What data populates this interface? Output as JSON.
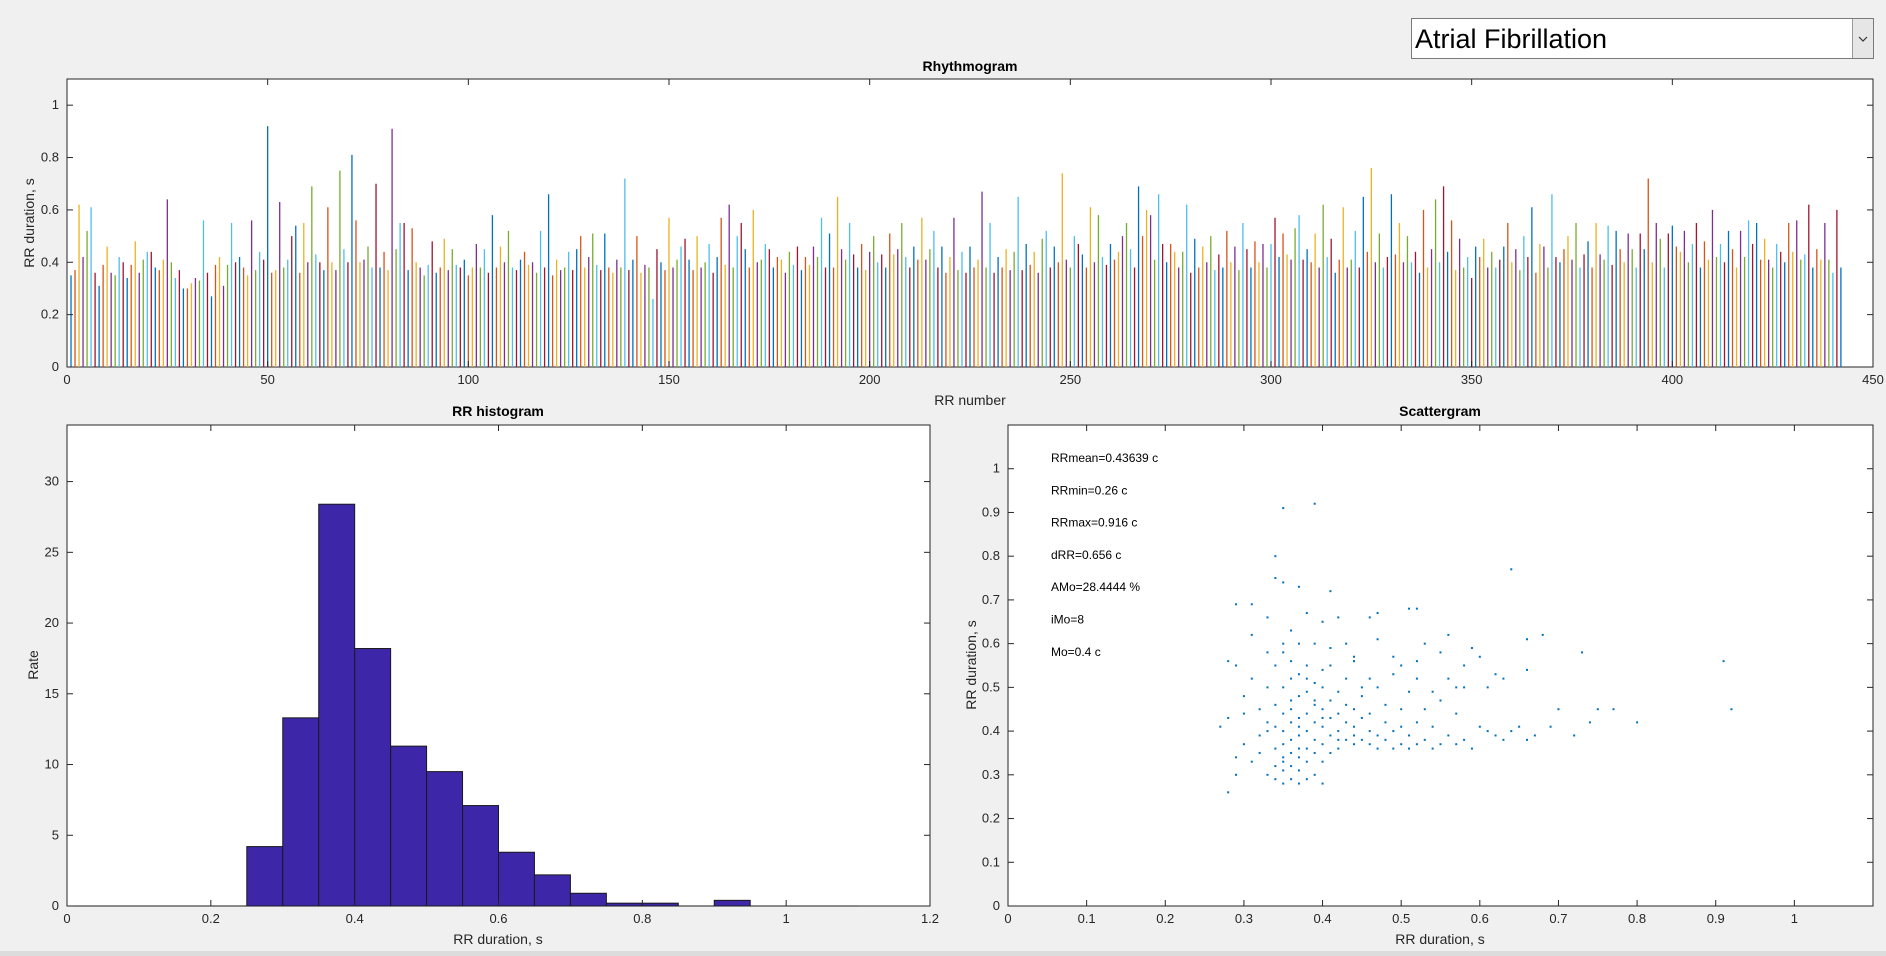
{
  "dropdown": {
    "value": "Atrial Fibrillation",
    "icon": "chevron-down-icon"
  },
  "colors": {
    "bg": "#f0f0f0",
    "hist_fill": "#3d26a8",
    "scatter": "#0072bd",
    "series_palette": [
      "#0072bd",
      "#d95319",
      "#edb120",
      "#7e2f8e",
      "#77ac30",
      "#4dbeee",
      "#a2142f"
    ]
  },
  "chart_data": [
    {
      "id": "rhythmogram",
      "type": "bar",
      "title": "Rhythmogram",
      "xlabel": "RR number",
      "ylabel": "RR duration, s",
      "xlim": [
        0,
        450
      ],
      "ylim": [
        0,
        1.1
      ],
      "xticks": [
        0,
        50,
        100,
        150,
        200,
        250,
        300,
        350,
        400,
        450
      ],
      "yticks": [
        0,
        0.2,
        0.4,
        0.6,
        0.8,
        1
      ],
      "x_start": 1,
      "values": [
        0.35,
        0.37,
        0.62,
        0.42,
        0.52,
        0.61,
        0.36,
        0.31,
        0.39,
        0.46,
        0.36,
        0.35,
        0.42,
        0.4,
        0.34,
        0.39,
        0.48,
        0.36,
        0.41,
        0.44,
        0.44,
        0.38,
        0.37,
        0.41,
        0.64,
        0.4,
        0.34,
        0.37,
        0.3,
        0.3,
        0.32,
        0.34,
        0.33,
        0.56,
        0.36,
        0.27,
        0.39,
        0.42,
        0.31,
        0.39,
        0.55,
        0.4,
        0.42,
        0.38,
        0.35,
        0.56,
        0.37,
        0.44,
        0.41,
        0.92,
        0.36,
        0.37,
        0.63,
        0.38,
        0.41,
        0.5,
        0.54,
        0.36,
        0.55,
        0.4,
        0.69,
        0.43,
        0.4,
        0.37,
        0.61,
        0.4,
        0.37,
        0.75,
        0.45,
        0.4,
        0.81,
        0.56,
        0.4,
        0.41,
        0.46,
        0.38,
        0.7,
        0.38,
        0.44,
        0.37,
        0.91,
        0.45,
        0.55,
        0.55,
        0.37,
        0.53,
        0.4,
        0.38,
        0.35,
        0.39,
        0.48,
        0.36,
        0.38,
        0.49,
        0.37,
        0.45,
        0.39,
        0.38,
        0.41,
        0.35,
        0.38,
        0.47,
        0.38,
        0.45,
        0.36,
        0.58,
        0.38,
        0.46,
        0.4,
        0.52,
        0.38,
        0.37,
        0.41,
        0.44,
        0.39,
        0.4,
        0.36,
        0.52,
        0.38,
        0.66,
        0.35,
        0.41,
        0.37,
        0.38,
        0.44,
        0.37,
        0.45,
        0.5,
        0.38,
        0.42,
        0.51,
        0.39,
        0.37,
        0.51,
        0.38,
        0.36,
        0.41,
        0.38,
        0.72,
        0.37,
        0.41,
        0.5,
        0.36,
        0.39,
        0.38,
        0.26,
        0.45,
        0.4,
        0.37,
        0.57,
        0.38,
        0.41,
        0.46,
        0.49,
        0.41,
        0.37,
        0.5,
        0.38,
        0.4,
        0.47,
        0.36,
        0.42,
        0.57,
        0.39,
        0.62,
        0.38,
        0.5,
        0.55,
        0.45,
        0.38,
        0.6,
        0.4,
        0.41,
        0.47,
        0.45,
        0.38,
        0.42,
        0.41,
        0.36,
        0.44,
        0.39,
        0.46,
        0.37,
        0.42,
        0.39,
        0.46,
        0.42,
        0.57,
        0.38,
        0.51,
        0.38,
        0.65,
        0.45,
        0.41,
        0.55,
        0.43,
        0.38,
        0.47,
        0.37,
        0.44,
        0.5,
        0.4,
        0.43,
        0.38,
        0.51,
        0.43,
        0.45,
        0.55,
        0.42,
        0.38,
        0.46,
        0.41,
        0.57,
        0.41,
        0.45,
        0.52,
        0.38,
        0.46,
        0.36,
        0.42,
        0.57,
        0.37,
        0.44,
        0.36,
        0.46,
        0.38,
        0.41,
        0.67,
        0.38,
        0.55,
        0.36,
        0.42,
        0.38,
        0.45,
        0.37,
        0.44,
        0.65,
        0.37,
        0.47,
        0.39,
        0.44,
        0.36,
        0.49,
        0.52,
        0.38,
        0.46,
        0.4,
        0.74,
        0.41,
        0.38,
        0.5,
        0.47,
        0.43,
        0.38,
        0.61,
        0.4,
        0.58,
        0.42,
        0.39,
        0.47,
        0.41,
        0.44,
        0.5,
        0.55,
        0.45,
        0.38,
        0.69,
        0.5,
        0.6,
        0.58,
        0.41,
        0.66,
        0.47,
        0.4,
        0.47,
        0.44,
        0.38,
        0.44,
        0.62,
        0.36,
        0.49,
        0.38,
        0.46,
        0.4,
        0.5,
        0.37,
        0.43,
        0.38,
        0.52,
        0.4,
        0.46,
        0.37,
        0.55,
        0.45,
        0.38,
        0.48,
        0.4,
        0.47,
        0.38,
        0.47,
        0.57,
        0.42,
        0.51,
        0.43,
        0.41,
        0.53,
        0.58,
        0.41,
        0.45,
        0.4,
        0.51,
        0.38,
        0.62,
        0.42,
        0.49,
        0.36,
        0.41,
        0.61,
        0.38,
        0.41,
        0.52,
        0.38,
        0.65,
        0.44,
        0.76,
        0.4,
        0.51,
        0.38,
        0.42,
        0.66,
        0.43,
        0.55,
        0.4,
        0.5,
        0.4,
        0.44,
        0.36,
        0.6,
        0.38,
        0.45,
        0.64,
        0.4,
        0.69,
        0.44,
        0.56,
        0.37,
        0.49,
        0.38,
        0.42,
        0.34,
        0.46,
        0.42,
        0.49,
        0.38,
        0.44,
        0.38,
        0.41,
        0.46,
        0.55,
        0.4,
        0.45,
        0.37,
        0.5,
        0.42,
        0.61,
        0.36,
        0.47,
        0.46,
        0.38,
        0.66,
        0.42,
        0.4,
        0.45,
        0.5,
        0.41,
        0.55,
        0.38,
        0.43,
        0.48,
        0.38,
        0.55,
        0.43,
        0.41,
        0.54,
        0.39,
        0.52,
        0.45,
        0.4,
        0.51,
        0.45,
        0.38,
        0.51,
        0.45,
        0.72,
        0.4,
        0.55,
        0.49,
        0.38,
        0.51,
        0.54,
        0.46,
        0.44,
        0.52,
        0.4,
        0.47,
        0.55,
        0.38,
        0.48,
        0.41,
        0.6,
        0.42,
        0.47,
        0.4,
        0.52,
        0.45,
        0.38,
        0.52,
        0.42,
        0.56,
        0.47,
        0.55,
        0.41,
        0.49,
        0.41,
        0.38,
        0.47,
        0.44,
        0.4,
        0.55,
        0.44,
        0.56,
        0.41,
        0.43,
        0.62,
        0.38,
        0.45,
        0.41,
        0.55,
        0.41,
        0.36,
        0.6,
        0.38
      ]
    },
    {
      "id": "histogram",
      "type": "bar",
      "title": "RR histogram",
      "xlabel": "RR duration, s",
      "ylabel": "Rate",
      "xlim": [
        0,
        1.2
      ],
      "ylim": [
        0,
        34
      ],
      "xticks": [
        0,
        0.2,
        0.4,
        0.6,
        0.8,
        1,
        1.2
      ],
      "yticks": [
        0,
        5,
        10,
        15,
        20,
        25,
        30
      ],
      "bin_width": 0.05,
      "bin_edges_start": [
        0,
        0.05,
        0.1,
        0.15,
        0.2,
        0.25,
        0.3,
        0.35,
        0.4,
        0.45,
        0.5,
        0.55,
        0.6,
        0.65,
        0.7,
        0.75,
        0.8,
        0.85,
        0.9,
        0.95,
        1.0,
        1.05
      ],
      "values": [
        0,
        0,
        0,
        0,
        0,
        4.2,
        13.3,
        28.4,
        18.2,
        11.3,
        9.5,
        7.1,
        3.8,
        2.2,
        0.9,
        0.2,
        0.2,
        0,
        0.4,
        0,
        0,
        0
      ]
    },
    {
      "id": "scattergram",
      "type": "scatter",
      "title": "Scattergram",
      "xlabel": "RR duration, s",
      "ylabel": "RR duration, s",
      "xlim": [
        0,
        1.1
      ],
      "ylim": [
        0,
        1.1
      ],
      "xticks": [
        0,
        0.1,
        0.2,
        0.3,
        0.4,
        0.5,
        0.6,
        0.7,
        0.8,
        0.9,
        1
      ],
      "yticks": [
        0,
        0.1,
        0.2,
        0.3,
        0.4,
        0.5,
        0.6,
        0.7,
        0.8,
        0.9,
        1
      ],
      "stats": [
        "RRmean=0.43639 c",
        "RRmin=0.26 c",
        "RRmax=0.916 c",
        "dRR=0.656 c",
        "AMo=28.4444 %",
        "iMo=8",
        "Mo=0.4 c"
      ],
      "points": [
        [
          0.35,
          0.91
        ],
        [
          0.39,
          0.92
        ],
        [
          0.34,
          0.8
        ],
        [
          0.34,
          0.75
        ],
        [
          0.35,
          0.74
        ],
        [
          0.37,
          0.73
        ],
        [
          0.41,
          0.72
        ],
        [
          0.64,
          0.77
        ],
        [
          0.29,
          0.69
        ],
        [
          0.31,
          0.69
        ],
        [
          0.33,
          0.66
        ],
        [
          0.38,
          0.67
        ],
        [
          0.4,
          0.65
        ],
        [
          0.42,
          0.66
        ],
        [
          0.46,
          0.66
        ],
        [
          0.47,
          0.67
        ],
        [
          0.51,
          0.68
        ],
        [
          0.52,
          0.68
        ],
        [
          0.56,
          0.62
        ],
        [
          0.66,
          0.61
        ],
        [
          0.68,
          0.62
        ],
        [
          0.73,
          0.58
        ],
        [
          0.91,
          0.56
        ],
        [
          0.28,
          0.56
        ],
        [
          0.29,
          0.55
        ],
        [
          0.31,
          0.62
        ],
        [
          0.33,
          0.58
        ],
        [
          0.35,
          0.6
        ],
        [
          0.36,
          0.63
        ],
        [
          0.37,
          0.6
        ],
        [
          0.39,
          0.6
        ],
        [
          0.41,
          0.59
        ],
        [
          0.44,
          0.57
        ],
        [
          0.47,
          0.61
        ],
        [
          0.49,
          0.57
        ],
        [
          0.52,
          0.56
        ],
        [
          0.53,
          0.6
        ],
        [
          0.55,
          0.58
        ],
        [
          0.58,
          0.55
        ],
        [
          0.59,
          0.59
        ],
        [
          0.61,
          0.5
        ],
        [
          0.62,
          0.53
        ],
        [
          0.63,
          0.52
        ],
        [
          0.27,
          0.41
        ],
        [
          0.28,
          0.43
        ],
        [
          0.28,
          0.26
        ],
        [
          0.29,
          0.3
        ],
        [
          0.29,
          0.34
        ],
        [
          0.3,
          0.48
        ],
        [
          0.3,
          0.37
        ],
        [
          0.31,
          0.33
        ],
        [
          0.31,
          0.52
        ],
        [
          0.32,
          0.45
        ],
        [
          0.32,
          0.35
        ],
        [
          0.32,
          0.39
        ],
        [
          0.33,
          0.3
        ],
        [
          0.33,
          0.42
        ],
        [
          0.33,
          0.5
        ],
        [
          0.34,
          0.29
        ],
        [
          0.34,
          0.32
        ],
        [
          0.34,
          0.36
        ],
        [
          0.34,
          0.41
        ],
        [
          0.34,
          0.46
        ],
        [
          0.34,
          0.55
        ],
        [
          0.35,
          0.28
        ],
        [
          0.35,
          0.31
        ],
        [
          0.35,
          0.34
        ],
        [
          0.35,
          0.37
        ],
        [
          0.35,
          0.4
        ],
        [
          0.35,
          0.44
        ],
        [
          0.35,
          0.5
        ],
        [
          0.35,
          0.58
        ],
        [
          0.36,
          0.29
        ],
        [
          0.36,
          0.32
        ],
        [
          0.36,
          0.35
        ],
        [
          0.36,
          0.38
        ],
        [
          0.36,
          0.42
        ],
        [
          0.36,
          0.47
        ],
        [
          0.36,
          0.52
        ],
        [
          0.36,
          0.56
        ],
        [
          0.37,
          0.28
        ],
        [
          0.37,
          0.31
        ],
        [
          0.37,
          0.34
        ],
        [
          0.37,
          0.36
        ],
        [
          0.37,
          0.39
        ],
        [
          0.37,
          0.43
        ],
        [
          0.37,
          0.48
        ],
        [
          0.37,
          0.53
        ],
        [
          0.38,
          0.29
        ],
        [
          0.38,
          0.33
        ],
        [
          0.38,
          0.36
        ],
        [
          0.38,
          0.4
        ],
        [
          0.38,
          0.44
        ],
        [
          0.38,
          0.49
        ],
        [
          0.38,
          0.55
        ],
        [
          0.39,
          0.3
        ],
        [
          0.39,
          0.35
        ],
        [
          0.39,
          0.38
        ],
        [
          0.39,
          0.42
        ],
        [
          0.39,
          0.46
        ],
        [
          0.39,
          0.51
        ],
        [
          0.4,
          0.28
        ],
        [
          0.4,
          0.33
        ],
        [
          0.4,
          0.37
        ],
        [
          0.4,
          0.41
        ],
        [
          0.4,
          0.45
        ],
        [
          0.4,
          0.5
        ],
        [
          0.4,
          0.54
        ],
        [
          0.41,
          0.35
        ],
        [
          0.41,
          0.39
        ],
        [
          0.41,
          0.43
        ],
        [
          0.41,
          0.47
        ],
        [
          0.42,
          0.36
        ],
        [
          0.42,
          0.4
        ],
        [
          0.42,
          0.44
        ],
        [
          0.42,
          0.49
        ],
        [
          0.43,
          0.38
        ],
        [
          0.43,
          0.42
        ],
        [
          0.43,
          0.46
        ],
        [
          0.43,
          0.52
        ],
        [
          0.44,
          0.37
        ],
        [
          0.44,
          0.41
        ],
        [
          0.44,
          0.45
        ],
        [
          0.45,
          0.38
        ],
        [
          0.45,
          0.43
        ],
        [
          0.45,
          0.48
        ],
        [
          0.46,
          0.37
        ],
        [
          0.46,
          0.4
        ],
        [
          0.46,
          0.44
        ],
        [
          0.47,
          0.36
        ],
        [
          0.47,
          0.39
        ],
        [
          0.47,
          0.5
        ],
        [
          0.48,
          0.38
        ],
        [
          0.48,
          0.42
        ],
        [
          0.48,
          0.46
        ],
        [
          0.49,
          0.36
        ],
        [
          0.49,
          0.4
        ],
        [
          0.49,
          0.53
        ],
        [
          0.5,
          0.37
        ],
        [
          0.5,
          0.41
        ],
        [
          0.5,
          0.45
        ],
        [
          0.51,
          0.36
        ],
        [
          0.51,
          0.39
        ],
        [
          0.51,
          0.49
        ],
        [
          0.52,
          0.37
        ],
        [
          0.52,
          0.42
        ],
        [
          0.52,
          0.52
        ],
        [
          0.53,
          0.38
        ],
        [
          0.53,
          0.45
        ],
        [
          0.54,
          0.36
        ],
        [
          0.54,
          0.41
        ],
        [
          0.55,
          0.37
        ],
        [
          0.55,
          0.47
        ],
        [
          0.56,
          0.39
        ],
        [
          0.56,
          0.52
        ],
        [
          0.57,
          0.37
        ],
        [
          0.57,
          0.44
        ],
        [
          0.58,
          0.38
        ],
        [
          0.58,
          0.5
        ],
        [
          0.59,
          0.36
        ],
        [
          0.6,
          0.41
        ],
        [
          0.61,
          0.4
        ],
        [
          0.62,
          0.39
        ],
        [
          0.63,
          0.38
        ],
        [
          0.64,
          0.4
        ],
        [
          0.65,
          0.41
        ],
        [
          0.66,
          0.38
        ],
        [
          0.67,
          0.39
        ],
        [
          0.69,
          0.41
        ],
        [
          0.7,
          0.45
        ],
        [
          0.72,
          0.39
        ],
        [
          0.74,
          0.42
        ],
        [
          0.75,
          0.45
        ],
        [
          0.77,
          0.45
        ],
        [
          0.8,
          0.42
        ],
        [
          0.92,
          0.45
        ],
        [
          0.66,
          0.54
        ],
        [
          0.44,
          0.56
        ],
        [
          0.45,
          0.5
        ],
        [
          0.38,
          0.52
        ],
        [
          0.3,
          0.44
        ],
        [
          0.33,
          0.4
        ],
        [
          0.36,
          0.45
        ],
        [
          0.39,
          0.47
        ],
        [
          0.41,
          0.55
        ],
        [
          0.43,
          0.6
        ],
        [
          0.46,
          0.52
        ],
        [
          0.5,
          0.55
        ],
        [
          0.54,
          0.49
        ],
        [
          0.57,
          0.5
        ],
        [
          0.6,
          0.57
        ],
        [
          0.35,
          0.33
        ],
        [
          0.37,
          0.41
        ],
        [
          0.4,
          0.43
        ],
        [
          0.42,
          0.38
        ],
        [
          0.44,
          0.39
        ]
      ]
    }
  ]
}
